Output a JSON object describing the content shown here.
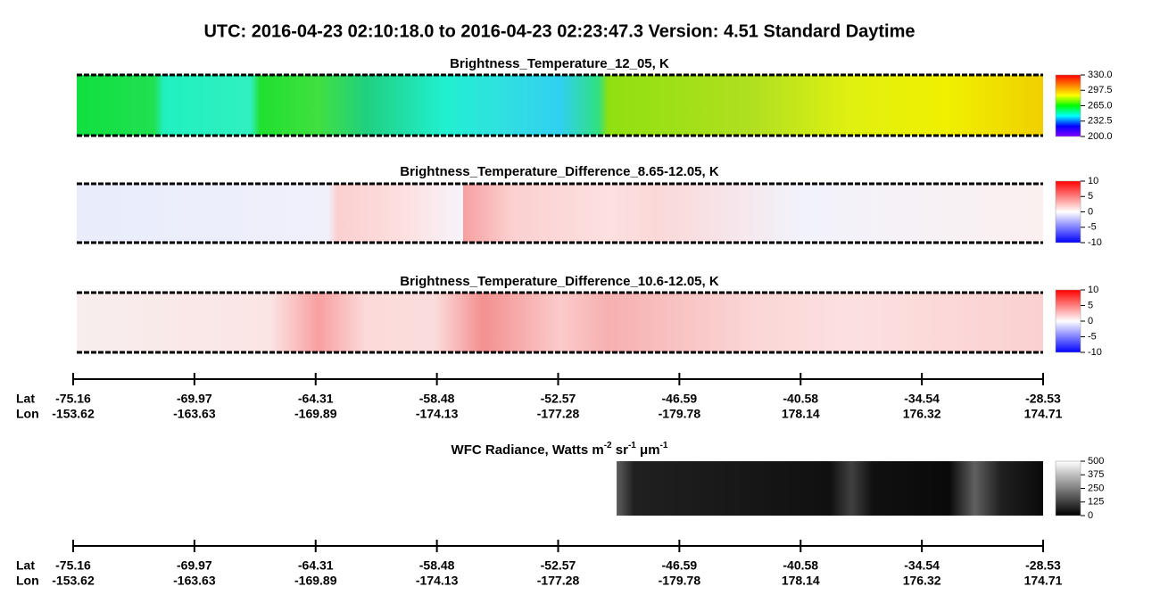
{
  "chart_data": {
    "type": "heatmap",
    "title": "UTC:  2016-04-23   02:10:18.0  to  2016-04-23   02:23:47.3    Version: 4.51  Standard Daytime",
    "panels": [
      {
        "title": "Brightness_Temperature_12_05, K",
        "clim": [
          200,
          330
        ],
        "colors": [
          "#8000ff",
          "#0000ff",
          "#00ffff",
          "#00ff00",
          "#ffff00",
          "#ff8000",
          "#ff0000"
        ],
        "colorbar_ticks": [
          {
            "value": 330,
            "label": "330.0"
          },
          297.5,
          {
            "value": 265,
            "label": "265.0"
          },
          232.5,
          {
            "value": 200,
            "label": "200.0"
          }
        ]
      },
      {
        "title": "Brightness_Temperature_Difference_8.65-12.05, K",
        "clim": [
          -10,
          10
        ],
        "colors": [
          "#0000ff",
          "#ffffff",
          "#ff0000"
        ],
        "colorbar_ticks": [
          10,
          5,
          0,
          -5,
          -10
        ]
      },
      {
        "title": "Brightness_Temperature_Difference_10.6-12.05, K",
        "clim": [
          -10,
          10
        ],
        "colors": [
          "#0000ff",
          "#ffffff",
          "#ff0000"
        ],
        "colorbar_ticks": [
          10,
          5,
          0,
          -5,
          -10
        ]
      },
      {
        "title_parts": [
          "WFC Radiance, Watts m",
          "-2",
          " sr",
          "-1",
          " μm",
          "-1"
        ],
        "clim": [
          0,
          500
        ],
        "colors": [
          "#000000",
          "#ffffff"
        ],
        "colorbar_ticks": [
          500,
          375,
          250,
          125,
          0
        ]
      }
    ],
    "axes": [
      {
        "lat_label": "Lat",
        "lon_label": "Lon",
        "ticks": [
          {
            "lat": -75.16,
            "lon": -153.62
          },
          {
            "lat": -69.97,
            "lon": -163.63
          },
          {
            "lat": -64.31,
            "lon": -169.89
          },
          {
            "lat": -58.48,
            "lon": -174.13
          },
          {
            "lat": -52.57,
            "lon": -177.28
          },
          {
            "lat": -46.59,
            "lon": -179.78
          },
          {
            "lat": -40.58,
            "lon": 178.14
          },
          {
            "lat": -34.54,
            "lon": 176.32
          },
          {
            "lat": -28.53,
            "lon": 174.71
          }
        ]
      },
      {
        "lat_label": "Lat",
        "lon_label": "Lon",
        "ticks": [
          {
            "lat": -75.16,
            "lon": -153.62
          },
          {
            "lat": -69.97,
            "lon": -163.63
          },
          {
            "lat": -64.31,
            "lon": -169.89
          },
          {
            "lat": -58.48,
            "lon": -174.13
          },
          {
            "lat": -52.57,
            "lon": -177.28
          },
          {
            "lat": -46.59,
            "lon": -179.78
          },
          {
            "lat": -40.58,
            "lon": 178.14
          },
          {
            "lat": -34.54,
            "lon": 176.32
          },
          {
            "lat": -28.53,
            "lon": 174.71
          }
        ]
      }
    ]
  }
}
